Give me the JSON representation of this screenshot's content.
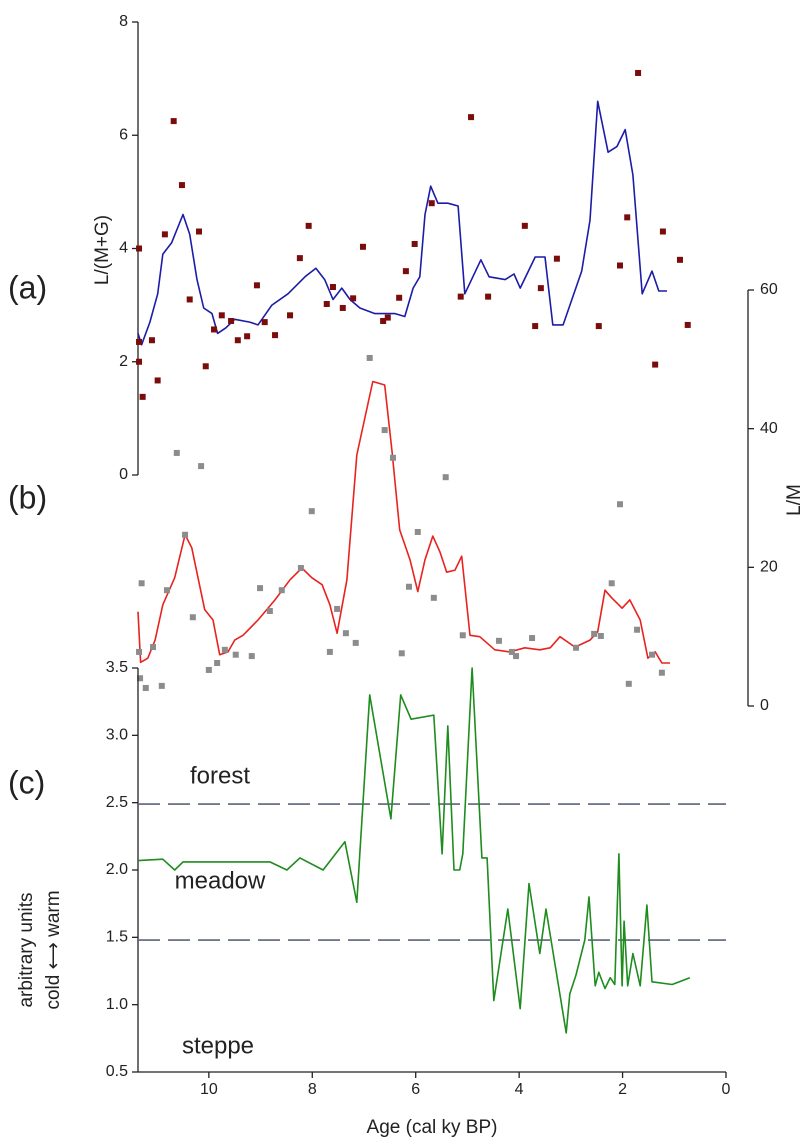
{
  "chart_data": [
    {
      "type": "line",
      "label": "(a)",
      "ylabel": "L/(M+G)",
      "y_axis_side": "left",
      "xlim": [
        11.37,
        0
      ],
      "ylim": [
        0,
        8
      ],
      "yticks": [
        0,
        2,
        4,
        6,
        8
      ],
      "series": [
        {
          "type": "line",
          "color": "#1c1ca8",
          "x": [
            11.37,
            11.3,
            11.14,
            10.99,
            10.89,
            10.72,
            10.5,
            10.37,
            10.23,
            10.1,
            9.94,
            9.83,
            9.67,
            9.5,
            9.21,
            9.05,
            8.78,
            8.47,
            8.14,
            7.93,
            7.76,
            7.6,
            7.43,
            7.27,
            7.08,
            6.79,
            6.4,
            6.21,
            6.05,
            5.92,
            5.82,
            5.71,
            5.57,
            5.38,
            5.18,
            5.05,
            4.74,
            4.58,
            4.27,
            4.1,
            3.98,
            3.69,
            3.5,
            3.35,
            3.15,
            2.79,
            2.63,
            2.48,
            2.28,
            2.11,
            1.95,
            1.8,
            1.62,
            1.43,
            1.3,
            1.14
          ],
          "values": [
            2.5,
            2.3,
            2.7,
            3.2,
            3.9,
            4.1,
            4.6,
            4.25,
            3.45,
            2.95,
            2.85,
            2.5,
            2.6,
            2.75,
            2.7,
            2.65,
            3.0,
            3.2,
            3.5,
            3.65,
            3.45,
            3.1,
            3.3,
            3.1,
            2.95,
            2.85,
            2.85,
            2.8,
            3.3,
            3.5,
            4.6,
            5.1,
            4.8,
            4.8,
            4.75,
            3.2,
            3.8,
            3.5,
            3.45,
            3.55,
            3.3,
            3.85,
            3.85,
            2.65,
            2.65,
            3.6,
            4.5,
            6.6,
            5.7,
            5.8,
            6.1,
            5.3,
            3.2,
            3.6,
            3.25,
            3.25
          ]
        },
        {
          "type": "scatter",
          "color": "#7a0c0c",
          "x": [
            11.35,
            11.35,
            11.35,
            11.28,
            11.1,
            10.99,
            10.85,
            10.68,
            10.52,
            10.37,
            10.19,
            10.06,
            9.9,
            9.75,
            9.57,
            9.44,
            9.26,
            9.07,
            8.92,
            8.72,
            8.43,
            8.24,
            8.07,
            7.72,
            7.6,
            7.41,
            7.21,
            7.02,
            6.63,
            6.54,
            6.32,
            6.19,
            6.02,
            5.69,
            5.13,
            4.93,
            4.6,
            3.89,
            3.69,
            3.58,
            3.27,
            2.46,
            2.05,
            1.91,
            1.7,
            1.37,
            1.22,
            0.89,
            0.74
          ],
          "values": [
            4.0,
            2.35,
            2.0,
            1.38,
            2.38,
            1.67,
            4.25,
            6.25,
            5.12,
            3.1,
            4.3,
            1.92,
            2.57,
            2.82,
            2.72,
            2.38,
            2.45,
            3.35,
            2.7,
            2.47,
            2.82,
            3.83,
            4.4,
            3.02,
            3.32,
            2.95,
            3.12,
            4.03,
            2.72,
            2.78,
            3.13,
            3.6,
            4.08,
            4.8,
            3.15,
            6.32,
            3.15,
            4.4,
            2.63,
            3.3,
            3.82,
            2.63,
            3.7,
            4.55,
            7.1,
            1.95,
            4.3,
            3.8,
            2.65
          ]
        }
      ]
    },
    {
      "type": "line",
      "label": "(b)",
      "ylabel": "L/M",
      "y_axis_side": "right",
      "xlim": [
        11.37,
        0
      ],
      "ylim": [
        0,
        60
      ],
      "yticks": [
        0,
        20,
        40,
        60
      ],
      "series": [
        {
          "type": "line",
          "color": "#e8231f",
          "x": [
            11.37,
            11.32,
            11.18,
            11.04,
            10.89,
            10.66,
            10.46,
            10.33,
            10.21,
            10.08,
            9.92,
            9.79,
            9.63,
            9.5,
            9.34,
            9.05,
            8.72,
            8.43,
            8.2,
            8.01,
            7.81,
            7.66,
            7.52,
            7.33,
            7.14,
            6.83,
            6.6,
            6.46,
            6.31,
            6.11,
            5.96,
            5.82,
            5.67,
            5.53,
            5.4,
            5.24,
            5.11,
            4.95,
            4.76,
            4.47,
            4.18,
            3.89,
            3.6,
            3.4,
            3.21,
            2.92,
            2.63,
            2.48,
            2.34,
            2.21,
            2.01,
            1.86,
            1.66,
            1.51,
            1.37,
            1.24,
            1.08
          ],
          "values": [
            13.6,
            6.3,
            6.9,
            9.5,
            14.6,
            18.5,
            24.7,
            22.8,
            18.5,
            13.9,
            12.4,
            7.4,
            7.8,
            9.5,
            10.2,
            12.4,
            15.3,
            18.2,
            19.9,
            18.5,
            17.5,
            14.6,
            10.5,
            18.2,
            36.2,
            46.8,
            46.3,
            36.9,
            25.4,
            21.1,
            16.5,
            21.1,
            24.5,
            22.2,
            19.3,
            19.6,
            21.6,
            10.2,
            10.0,
            8.1,
            7.8,
            8.4,
            8.1,
            8.4,
            10.0,
            8.5,
            9.5,
            10.7,
            16.7,
            15.6,
            14.1,
            15.3,
            12.4,
            6.9,
            7.8,
            6.2,
            6.2
          ]
        },
        {
          "type": "scatter",
          "color": "#8c8c8c",
          "x": [
            11.3,
            11.35,
            11.33,
            11.22,
            11.08,
            10.91,
            10.81,
            10.62,
            10.46,
            10.31,
            10.15,
            10.0,
            9.84,
            9.69,
            9.48,
            9.17,
            9.01,
            8.82,
            8.59,
            8.22,
            8.01,
            7.66,
            7.52,
            7.35,
            7.16,
            6.89,
            6.6,
            6.44,
            6.27,
            6.13,
            5.96,
            5.65,
            5.42,
            5.09,
            4.39,
            4.14,
            4.06,
            3.75,
            2.9,
            2.55,
            2.42,
            2.21,
            2.05,
            1.88,
            1.72,
            1.43,
            1.24
          ],
          "values": [
            17.7,
            7.8,
            4.0,
            2.6,
            8.5,
            2.9,
            16.7,
            36.5,
            24.7,
            12.8,
            34.6,
            5.2,
            6.2,
            8.1,
            7.4,
            7.2,
            17.0,
            13.7,
            16.7,
            19.9,
            28.1,
            7.8,
            14.0,
            10.5,
            9.1,
            50.2,
            39.8,
            35.8,
            7.6,
            17.2,
            25.1,
            15.6,
            33.0,
            10.2,
            9.4,
            7.8,
            7.2,
            9.8,
            8.4,
            10.4,
            10.1,
            17.7,
            29.1,
            3.2,
            11.0,
            7.4,
            4.8
          ]
        }
      ]
    },
    {
      "type": "line",
      "label": "(c)",
      "ylabel": [
        "arbitrary units",
        "cold ⟷ warm"
      ],
      "y_axis_side": "left",
      "xlabel": "Age (cal ky BP)",
      "xlim": [
        11.37,
        0
      ],
      "xticks": [
        10,
        8,
        6,
        4,
        2,
        0
      ],
      "ylim": [
        0.5,
        3.5
      ],
      "yticks": [
        0.5,
        {
          "value": 1,
          "label": "1.0"
        },
        1.5,
        {
          "value": 2,
          "label": "2.0"
        },
        2.5,
        {
          "value": 3,
          "label": "3.0"
        },
        3.5
      ],
      "reference_lines": [
        2.49,
        1.48
      ],
      "reference_color": "#5b6579",
      "annotations": [
        "forest",
        "meadow",
        "steppe"
      ],
      "series": [
        {
          "type": "line",
          "color": "#1e8c1e",
          "x": [
            11.37,
            10.89,
            10.66,
            10.5,
            8.82,
            8.49,
            8.24,
            7.79,
            7.37,
            7.14,
            6.89,
            6.48,
            6.29,
            6.09,
            5.65,
            5.49,
            5.38,
            5.26,
            5.15,
            5.09,
            4.91,
            4.72,
            4.62,
            4.49,
            4.22,
            3.98,
            3.81,
            3.6,
            3.48,
            3.09,
            3.02,
            2.9,
            2.73,
            2.65,
            2.53,
            2.46,
            2.34,
            2.24,
            2.15,
            2.07,
            2.01,
            1.97,
            1.9,
            1.8,
            1.66,
            1.53,
            1.43,
            1.04,
            0.7
          ],
          "values": [
            2.07,
            2.08,
            2.0,
            2.06,
            2.06,
            2.0,
            2.09,
            2.0,
            2.21,
            1.76,
            3.3,
            2.38,
            3.3,
            3.12,
            3.15,
            2.12,
            3.07,
            2.0,
            2.0,
            2.12,
            3.5,
            2.09,
            2.09,
            1.03,
            1.71,
            0.97,
            1.9,
            1.38,
            1.71,
            0.79,
            1.08,
            1.22,
            1.48,
            1.8,
            1.14,
            1.24,
            1.12,
            1.2,
            1.15,
            2.12,
            1.14,
            1.62,
            1.14,
            1.38,
            1.14,
            1.74,
            1.17,
            1.15,
            1.2
          ]
        }
      ]
    }
  ]
}
